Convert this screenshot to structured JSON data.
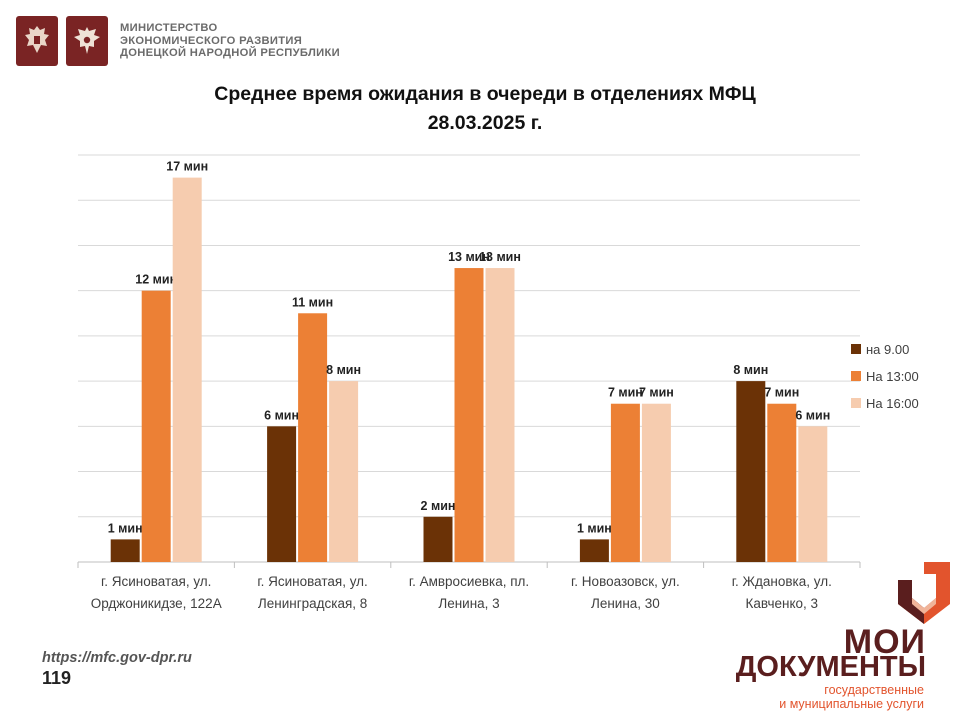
{
  "header": {
    "ministry_line1": "МИНИСТЕРСТВО",
    "ministry_line2": "ЭКОНОМИЧЕСКОГО РАЗВИТИЯ",
    "ministry_line3": "ДОНЕЦКОЙ НАРОДНОЙ РЕСПУБЛИКИ",
    "emblem_icons": [
      "russia-coat-of-arms-icon",
      "dpr-coat-of-arms-icon"
    ],
    "emblem_color": "#7a2424"
  },
  "chart_data": {
    "type": "bar",
    "title_line1": "Среднее время ожидания в очереди в отделениях МФЦ",
    "title_line2": "28.03.2025   г.",
    "categories": [
      [
        "г. Ясиноватая, ул.",
        "Орджоникидзе, 122А"
      ],
      [
        "г. Ясиноватая, ул.",
        "Ленинградская, 8"
      ],
      [
        "г. Амвросиевка, пл.",
        "Ленина, 3"
      ],
      [
        "г. Новоазовск, ул.",
        "Ленина, 30"
      ],
      [
        "г. Ждановка, ул.",
        "Кавченко, 3"
      ]
    ],
    "series": [
      {
        "name": "на 9.00",
        "color": "#6b3206",
        "values": [
          1,
          6,
          2,
          1,
          8
        ],
        "labels": [
          "1 мин",
          "6 мин",
          "2 мин",
          "1 мин",
          "8 мин"
        ]
      },
      {
        "name": "На 13:00",
        "color": "#ec8035",
        "values": [
          12,
          11,
          13,
          7,
          7
        ],
        "labels": [
          "12 мин",
          "11 мин",
          "13 мин",
          "7 мин",
          "7 мин"
        ]
      },
      {
        "name": "На 16:00",
        "color": "#f6ccaf",
        "values": [
          17,
          8,
          13,
          7,
          6
        ],
        "labels": [
          "17 мин",
          "8 мин",
          "13 мин",
          "7 мин",
          "6 мин"
        ]
      }
    ],
    "ylim": [
      0,
      18
    ],
    "y_grid_step": 2,
    "grid": true,
    "legend_position": "right"
  },
  "footer": {
    "url": "https://mfc.gov-dpr.ru",
    "page_number": "119"
  },
  "brand": {
    "line1": "МОИ",
    "line2": "ДОКУМЕНТЫ",
    "line3": "государственные",
    "line4": "и муниципальные услуги",
    "logo_icon": "moi-dokumenty-logo-icon",
    "colors": {
      "dark": "#5a1e1e",
      "accent": "#e2542d",
      "light": "#f0b49a"
    }
  }
}
